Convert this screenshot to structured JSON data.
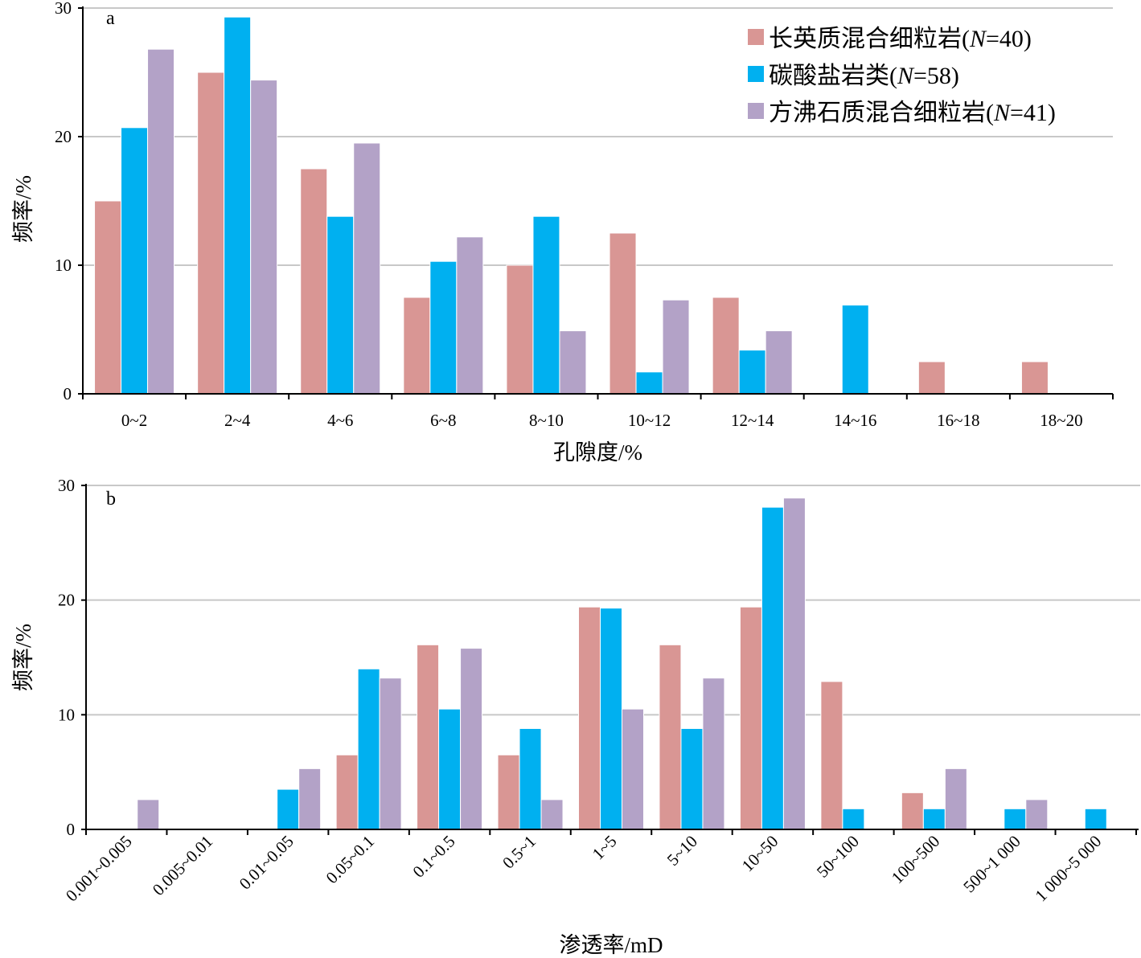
{
  "colors": {
    "felsic": "#d99694",
    "carbonate": "#00b0f0",
    "zeolite": "#b3a2c7"
  },
  "legend": {
    "items": [
      {
        "series": "felsic",
        "text": "长英质混合细粒岩(",
        "n": "N",
        "count": "=40)"
      },
      {
        "series": "carbonate",
        "text": "碳酸盐岩类(",
        "n": "N",
        "count": "=58)"
      },
      {
        "series": "zeolite",
        "text": "方沸石质混合细粒岩(",
        "n": "N",
        "count": "=41)"
      }
    ]
  },
  "chart_data": [
    {
      "type": "bar",
      "panel_label": "a",
      "xlabel": "孔隙度/%",
      "ylabel": "频率/%",
      "ylim": [
        0,
        30
      ],
      "yticks": [
        0,
        10,
        20,
        30
      ],
      "categories": [
        "0~2",
        "2~4",
        "4~6",
        "6~8",
        "8~10",
        "10~12",
        "12~14",
        "14~16",
        "16~18",
        "18~20"
      ],
      "series": [
        {
          "name": "长英质混合细粒岩(N=40)",
          "key": "felsic",
          "values": [
            15,
            25,
            17.5,
            7.5,
            10,
            12.5,
            7.5,
            0,
            2.5,
            2.5
          ]
        },
        {
          "name": "碳酸盐岩类(N=58)",
          "key": "carbonate",
          "values": [
            20.7,
            29.3,
            13.8,
            10.3,
            13.8,
            1.7,
            3.4,
            6.9,
            0,
            0
          ]
        },
        {
          "name": "方沸石质混合细粒岩(N=41)",
          "key": "zeolite",
          "values": [
            26.8,
            24.4,
            19.5,
            12.2,
            4.9,
            7.3,
            4.9,
            0,
            0,
            0
          ]
        }
      ]
    },
    {
      "type": "bar",
      "panel_label": "b",
      "xlabel": "渗透率/mD",
      "ylabel": "频率/%",
      "ylim": [
        0,
        30
      ],
      "yticks": [
        0,
        10,
        20,
        30
      ],
      "categories": [
        "0.001~0.005",
        "0.005~0.01",
        "0.01~0.05",
        "0.05~0.1",
        "0.1~0.5",
        "0.5~1",
        "1~5",
        "5~10",
        "10~50",
        "50~100",
        "100~500",
        "500~1 000",
        "1 000~5 000"
      ],
      "series": [
        {
          "name": "长英质混合细粒岩(N=40)",
          "key": "felsic",
          "values": [
            0,
            0,
            0,
            6.5,
            16.1,
            6.5,
            19.4,
            16.1,
            19.4,
            12.9,
            3.2,
            0,
            0
          ]
        },
        {
          "name": "碳酸盐岩类(N=58)",
          "key": "carbonate",
          "values": [
            0,
            0,
            3.5,
            14.0,
            10.5,
            8.8,
            19.3,
            8.8,
            28.1,
            1.8,
            1.8,
            1.8,
            1.8
          ]
        },
        {
          "name": "方沸石质混合细粒岩(N=41)",
          "key": "zeolite",
          "values": [
            2.6,
            0,
            5.3,
            13.2,
            15.8,
            2.6,
            10.5,
            13.2,
            28.9,
            0,
            5.3,
            2.6,
            0
          ]
        }
      ]
    }
  ]
}
